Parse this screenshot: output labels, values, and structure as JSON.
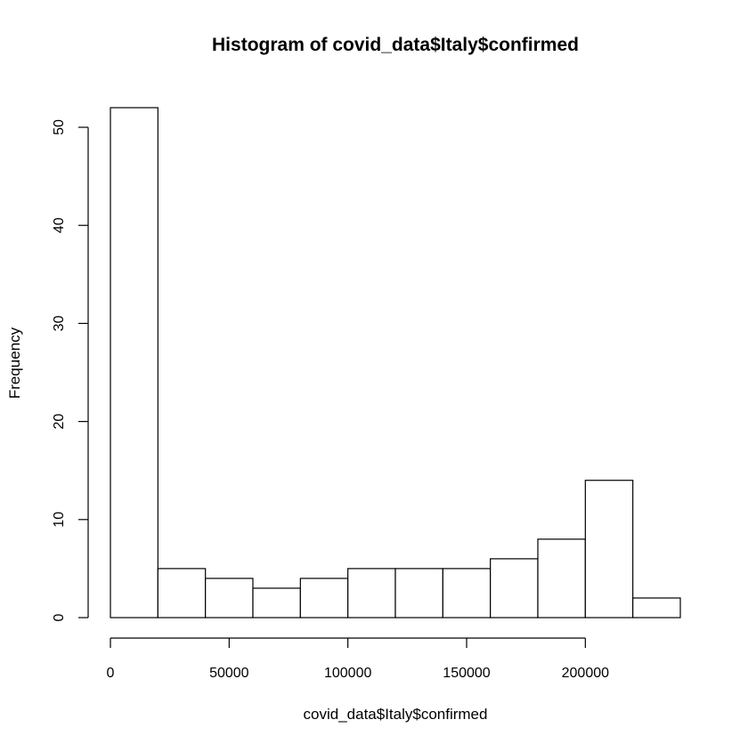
{
  "chart_data": {
    "type": "bar",
    "title": "Histogram of covid_data$Italy$confirmed",
    "xlabel": "covid_data$Italy$confirmed",
    "ylabel": "Frequency",
    "bins": [
      {
        "start": 0,
        "end": 20000,
        "count": 52
      },
      {
        "start": 20000,
        "end": 40000,
        "count": 5
      },
      {
        "start": 40000,
        "end": 60000,
        "count": 4
      },
      {
        "start": 60000,
        "end": 80000,
        "count": 3
      },
      {
        "start": 80000,
        "end": 100000,
        "count": 4
      },
      {
        "start": 100000,
        "end": 120000,
        "count": 5
      },
      {
        "start": 120000,
        "end": 140000,
        "count": 5
      },
      {
        "start": 140000,
        "end": 160000,
        "count": 5
      },
      {
        "start": 160000,
        "end": 180000,
        "count": 6
      },
      {
        "start": 180000,
        "end": 200000,
        "count": 8
      },
      {
        "start": 200000,
        "end": 220000,
        "count": 14
      },
      {
        "start": 220000,
        "end": 240000,
        "count": 2
      }
    ],
    "xlim": [
      0,
      240000
    ],
    "ylim": [
      0,
      52
    ],
    "x_ticks": [
      0,
      50000,
      100000,
      150000,
      200000
    ],
    "x_tick_labels": [
      "0",
      "50000",
      "100000",
      "150000",
      "200000"
    ],
    "y_ticks": [
      0,
      10,
      20,
      30,
      40,
      50
    ],
    "y_tick_labels": [
      "0",
      "10",
      "20",
      "30",
      "40",
      "50"
    ],
    "grid": false,
    "legend": "none",
    "colors": {
      "bar_fill": "#ffffff",
      "bar_stroke": "#000000",
      "background": "#ffffff"
    }
  }
}
